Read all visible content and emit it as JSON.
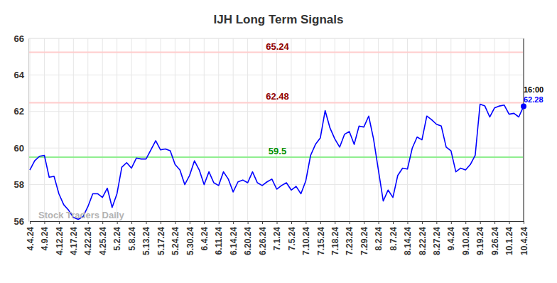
{
  "chart_data": {
    "type": "line",
    "title": "IJH Long Term Signals",
    "watermark": "Stock Traders Daily",
    "annotation": "16:00",
    "color": "#0000ff",
    "grid": true,
    "categories": [
      "4.4.24",
      null,
      null,
      "4.9.24",
      null,
      null,
      "4.12.24",
      null,
      null,
      "4.17.24",
      null,
      null,
      "4.22.24",
      null,
      null,
      "4.25.24",
      null,
      null,
      "5.2.24",
      null,
      null,
      "5.8.24",
      null,
      null,
      "5.13.24",
      null,
      null,
      "5.17.24",
      null,
      null,
      "5.24.24",
      null,
      null,
      "5.30.24",
      null,
      null,
      "6.4.24",
      null,
      null,
      "6.11.24",
      null,
      null,
      "6.14.24",
      null,
      null,
      "6.20.24",
      null,
      null,
      "6.26.24",
      null,
      null,
      "7.1.24",
      null,
      null,
      "7.5.24",
      null,
      null,
      "7.10.24",
      null,
      null,
      "7.15.24",
      null,
      null,
      "7.18.24",
      null,
      null,
      "7.23.24",
      null,
      null,
      "7.29.24",
      null,
      null,
      "8.2.24",
      null,
      null,
      "8.7.24",
      null,
      null,
      "8.14.24",
      null,
      null,
      "8.22.24",
      null,
      null,
      "8.27.24",
      null,
      null,
      "9.4.24",
      null,
      null,
      "9.10.24",
      null,
      null,
      "9.19.24",
      null,
      null,
      "9.26.24",
      null,
      null,
      "10.1.24",
      null,
      null,
      "10.4.24"
    ],
    "values": [
      58.8,
      59.3,
      59.55,
      59.6,
      58.4,
      58.45,
      57.5,
      56.9,
      56.6,
      56.2,
      56.1,
      56.25,
      56.8,
      57.5,
      57.5,
      57.3,
      57.8,
      56.75,
      57.5,
      58.95,
      59.2,
      58.9,
      59.45,
      59.4,
      59.4,
      59.9,
      60.4,
      59.9,
      59.95,
      59.85,
      59.1,
      58.8,
      58.0,
      58.5,
      59.3,
      58.8,
      58.0,
      58.7,
      58.1,
      57.95,
      58.7,
      58.3,
      57.6,
      58.15,
      58.25,
      58.1,
      58.7,
      58.1,
      57.95,
      58.15,
      58.3,
      57.75,
      57.95,
      58.1,
      57.7,
      57.9,
      57.5,
      58.2,
      59.6,
      60.2,
      60.55,
      62.05,
      61.1,
      60.5,
      60.05,
      60.75,
      60.9,
      60.2,
      61.2,
      61.15,
      61.75,
      60.5,
      58.8,
      57.1,
      57.7,
      57.3,
      58.5,
      58.9,
      58.85,
      60.0,
      60.6,
      60.45,
      61.75,
      61.55,
      61.3,
      61.2,
      60.05,
      59.85,
      58.7,
      58.9,
      58.8,
      59.1,
      59.6,
      62.4,
      62.3,
      61.7,
      62.2,
      62.3,
      62.35,
      61.85,
      61.9,
      61.7,
      62.28
    ],
    "ylim": [
      56,
      66
    ],
    "yticks": [
      56,
      58,
      60,
      62,
      64,
      66
    ],
    "reference_lines": [
      {
        "value": 65.24,
        "color": "#ffcccc"
      },
      {
        "value": 62.48,
        "color": "#ffcccc"
      },
      {
        "value": 59.5,
        "color": "#90ee90"
      }
    ]
  }
}
